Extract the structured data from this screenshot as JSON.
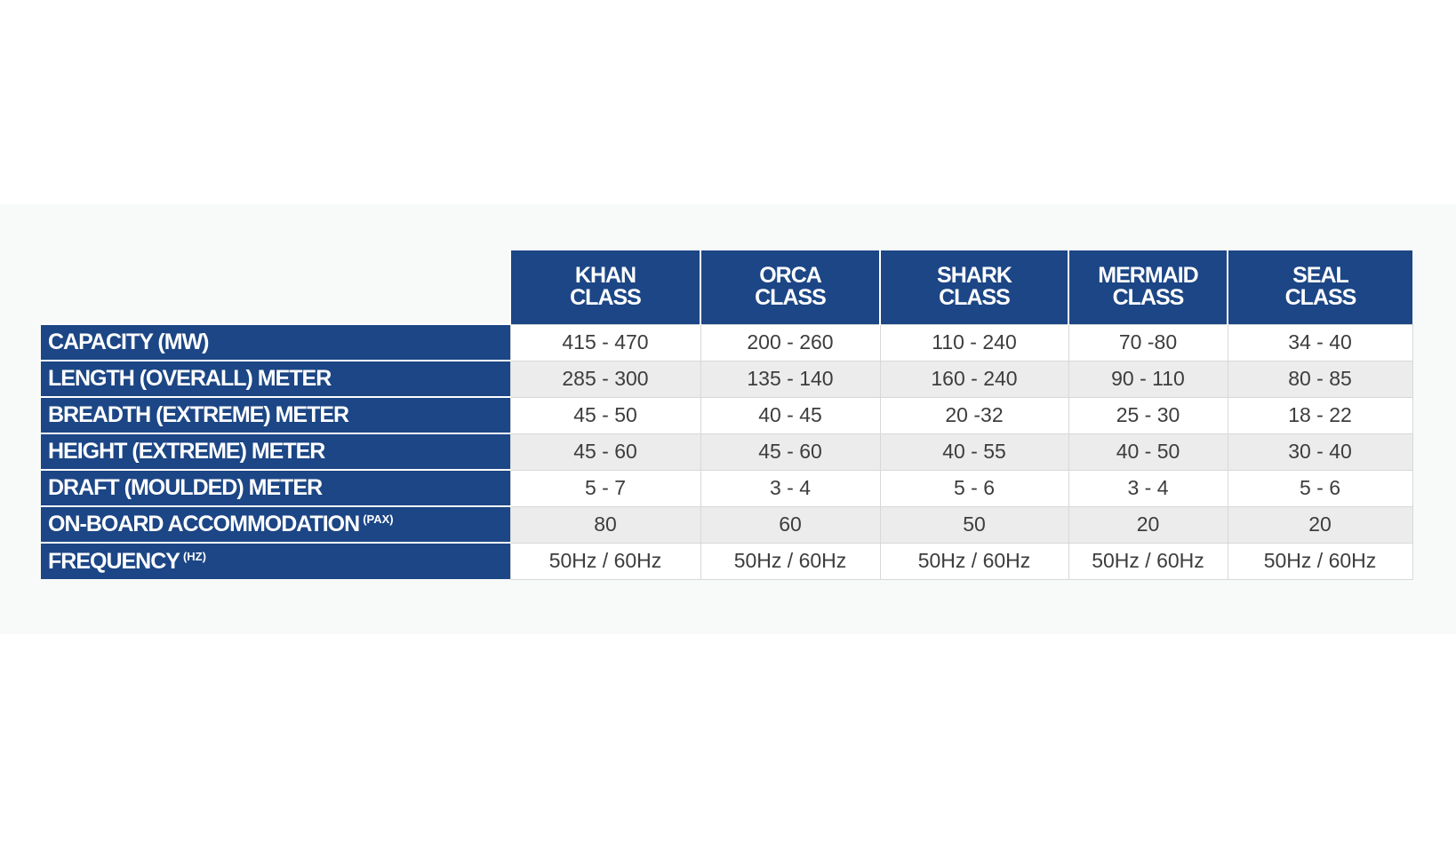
{
  "table": {
    "columns": [
      {
        "line1": "KHAN",
        "line2": "CLASS"
      },
      {
        "line1": "ORCA",
        "line2": "CLASS"
      },
      {
        "line1": "SHARK",
        "line2": "CLASS"
      },
      {
        "line1": "MERMAID",
        "line2": "CLASS"
      },
      {
        "line1": "SEAL",
        "line2": "CLASS"
      }
    ],
    "rows": [
      {
        "label": "CAPACITY (MW)",
        "unit": "",
        "values": [
          "415 - 470",
          "200 - 260",
          "110 - 240",
          "70 -80",
          "34 - 40"
        ]
      },
      {
        "label": "LENGTH (OVERALL) METER",
        "unit": "",
        "values": [
          "285 - 300",
          "135 - 140",
          "160 - 240",
          "90 - 110",
          "80 - 85"
        ]
      },
      {
        "label": "BREADTH (EXTREME) METER",
        "unit": "",
        "values": [
          "45 - 50",
          "40 - 45",
          "20 -32",
          "25 - 30",
          "18 - 22"
        ]
      },
      {
        "label": "HEIGHT (EXTREME) METER",
        "unit": "",
        "values": [
          "45 - 60",
          "45 - 60",
          "40 - 55",
          "40 - 50",
          "30 - 40"
        ]
      },
      {
        "label": "DRAFT (MOULDED) METER",
        "unit": "",
        "values": [
          "5 - 7",
          "3 - 4",
          "5 - 6",
          "3 - 4",
          "5 - 6"
        ]
      },
      {
        "label": "ON-BOARD ACCOMMODATION",
        "unit": "(PAX)",
        "values": [
          "80",
          "60",
          "50",
          "20",
          "20"
        ]
      },
      {
        "label": "FREQUENCY",
        "unit": "(HZ)",
        "values": [
          "50Hz / 60Hz",
          "50Hz / 60Hz",
          "50Hz / 60Hz",
          "50Hz / 60Hz",
          "50Hz / 60Hz"
        ]
      }
    ]
  },
  "colors": {
    "header_bg": "#1c4685",
    "header_text": "#ffffff",
    "row_alt_bg": "#ececec"
  }
}
